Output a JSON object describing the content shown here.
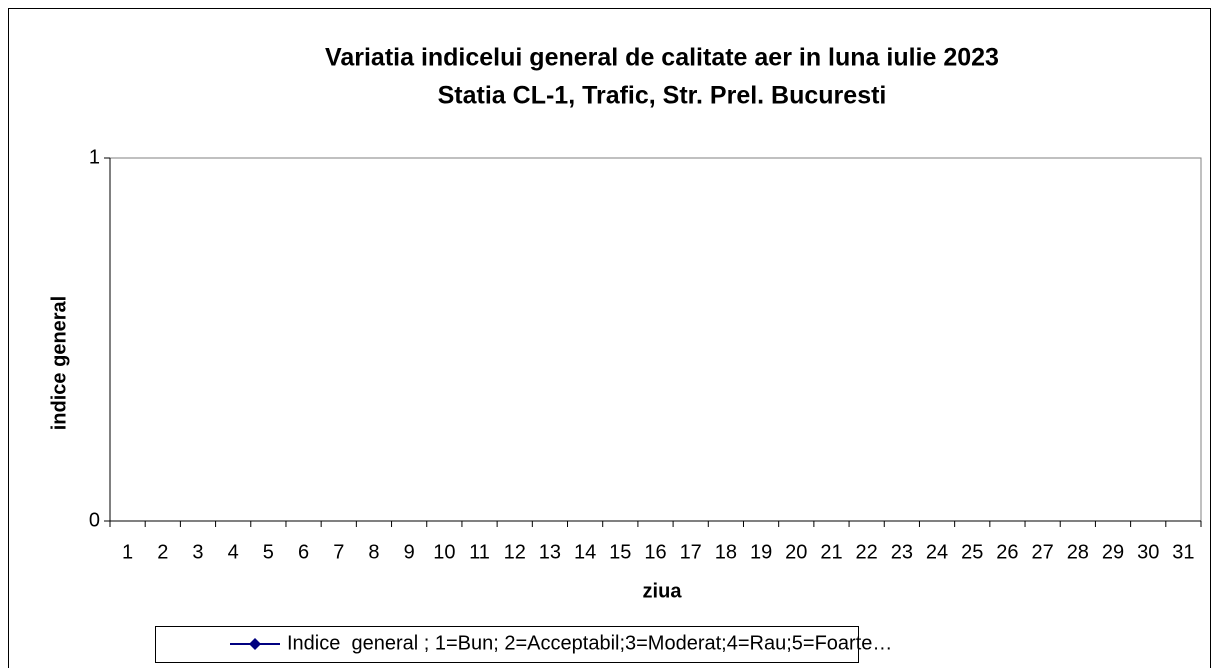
{
  "chart_data": {
    "type": "line",
    "title": "Variatia indicelui general de calitate aer in luna iulie 2023",
    "subtitle": "Statia CL-1, Trafic, Str. Prel. Bucuresti",
    "x_label": "ziua",
    "y_label": "indice general",
    "categories": [
      "1",
      "2",
      "3",
      "4",
      "5",
      "6",
      "7",
      "8",
      "9",
      "10",
      "11",
      "12",
      "13",
      "14",
      "15",
      "16",
      "17",
      "18",
      "19",
      "20",
      "21",
      "22",
      "23",
      "24",
      "25",
      "26",
      "27",
      "28",
      "29",
      "30",
      "31"
    ],
    "series": [
      {
        "name": "Indice  general ; 1=Bun; 2=Acceptabil;3=Moderat;4=Rau;5=Foarte…",
        "color": "#000080",
        "values": [
          null,
          null,
          null,
          null,
          null,
          null,
          null,
          null,
          null,
          null,
          null,
          null,
          null,
          null,
          null,
          null,
          null,
          null,
          null,
          null,
          null,
          null,
          null,
          null,
          null,
          null,
          null,
          null,
          null,
          null,
          null
        ]
      }
    ],
    "ylim": [
      0,
      1
    ],
    "yticks": [
      0,
      1
    ],
    "grid": false,
    "legend": "bottom"
  }
}
